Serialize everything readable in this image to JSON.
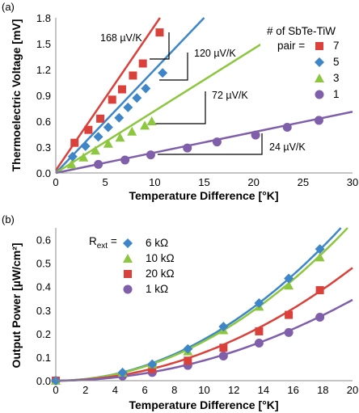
{
  "chart_data": [
    {
      "type": "scatter",
      "panel_label": "(a)",
      "xlabel": "Temperature Difference [°K]",
      "ylabel": "Thermoelectric Voltage [mV]",
      "xlim": [
        0,
        30
      ],
      "ylim": [
        0,
        1.8
      ],
      "xticks": [
        "0",
        "5",
        "10",
        "15",
        "20",
        "25",
        "30"
      ],
      "yticks": [
        "0.0",
        "0.3",
        "0.6",
        "0.9",
        "1.2",
        "1.5",
        "1.8"
      ],
      "grid": false,
      "legend": {
        "title_line1": "# of SbTe-TiW",
        "title_line2": "pair =",
        "placement": "top-right",
        "entries": [
          "7",
          "5",
          "3",
          "1"
        ]
      },
      "series": [
        {
          "name": "7",
          "marker": "square",
          "color": "#d9413a",
          "fit_slope": 0.168,
          "fit_intercept": 0.03,
          "x": [
            1.9,
            3.3,
            4.5,
            5.7,
            6.7,
            7.8,
            8.8,
            10.5
          ],
          "y": [
            0.35,
            0.5,
            0.63,
            0.85,
            0.97,
            1.13,
            1.27,
            1.63
          ]
        },
        {
          "name": "5",
          "marker": "diamond",
          "color": "#3e86c8",
          "fit_slope": 0.12,
          "fit_intercept": 0.0,
          "x": [
            1.7,
            3.0,
            4.3,
            5.3,
            6.4,
            7.3,
            8.2,
            9.1,
            10.8
          ],
          "y": [
            0.19,
            0.31,
            0.42,
            0.53,
            0.64,
            0.76,
            0.87,
            0.98,
            1.16
          ]
        },
        {
          "name": "3",
          "marker": "triangle",
          "color": "#8dc63f",
          "fit_slope": 0.072,
          "fit_intercept": 0.0,
          "x": [
            1.6,
            2.8,
            4.0,
            5.3,
            6.5,
            7.7,
            9.0,
            9.7
          ],
          "y": [
            0.1,
            0.18,
            0.26,
            0.34,
            0.41,
            0.48,
            0.55,
            0.6
          ]
        },
        {
          "name": "1",
          "marker": "circle",
          "color": "#7f5fa9",
          "fit_slope": 0.024,
          "fit_intercept": -0.01,
          "x": [
            4.3,
            7.0,
            9.6,
            13.3,
            16.3,
            20.2,
            23.4,
            26.6
          ],
          "y": [
            0.1,
            0.15,
            0.21,
            0.29,
            0.36,
            0.44,
            0.53,
            0.61
          ]
        }
      ],
      "annotations": [
        "168 µV/K",
        "120 µV/K",
        "72 µV/K",
        "24 µV/K"
      ]
    },
    {
      "type": "scatter",
      "panel_label": "(b)",
      "xlabel": "Temperature Difference [°K]",
      "ylabel": "Output Power [µW/cm²]",
      "xlim": [
        0,
        20
      ],
      "ylim": [
        0,
        0.65
      ],
      "xticks": [
        "0",
        "2",
        "4",
        "6",
        "8",
        "10",
        "12",
        "14",
        "16",
        "18",
        "20"
      ],
      "yticks": [
        "0.0",
        "0.1",
        "0.2",
        "0.3",
        "0.4",
        "0.5",
        "0.6"
      ],
      "grid": false,
      "legend": {
        "title_main": "R",
        "title_sub": "ext",
        "title_suffix": " =",
        "placement": "top-left",
        "entries": [
          "6 kΩ",
          "10 kΩ",
          "20 kΩ",
          "1 kΩ"
        ]
      },
      "series": [
        {
          "name": "6 kΩ",
          "marker": "diamond",
          "color": "#3e86c8",
          "fit_coef": 0.00176,
          "x": [
            0,
            4.5,
            6.5,
            8.9,
            11.3,
            13.7,
            15.7,
            17.8
          ],
          "y": [
            0.0,
            0.035,
            0.07,
            0.135,
            0.23,
            0.33,
            0.435,
            0.56
          ]
        },
        {
          "name": "10 kΩ",
          "marker": "triangle",
          "color": "#8dc63f",
          "fit_coef": 0.00168,
          "x": [
            0,
            4.5,
            6.5,
            8.9,
            11.3,
            13.7,
            15.7,
            17.8
          ],
          "y": [
            0.0,
            0.035,
            0.07,
            0.125,
            0.215,
            0.315,
            0.405,
            0.525
          ]
        },
        {
          "name": "20 kΩ",
          "marker": "square",
          "color": "#d9413a",
          "fit_coef": 0.0012,
          "x": [
            0,
            6.5,
            8.9,
            11.3,
            13.7,
            15.7,
            17.8
          ],
          "y": [
            0.0,
            0.05,
            0.085,
            0.14,
            0.21,
            0.28,
            0.385
          ]
        },
        {
          "name": "1 kΩ",
          "marker": "circle",
          "color": "#7f5fa9",
          "fit_coef": 0.00086,
          "x": [
            0,
            4.5,
            6.5,
            8.9,
            11.3,
            13.7,
            15.7,
            17.8
          ],
          "y": [
            0.0,
            0.02,
            0.035,
            0.065,
            0.105,
            0.16,
            0.205,
            0.27
          ]
        }
      ]
    }
  ]
}
